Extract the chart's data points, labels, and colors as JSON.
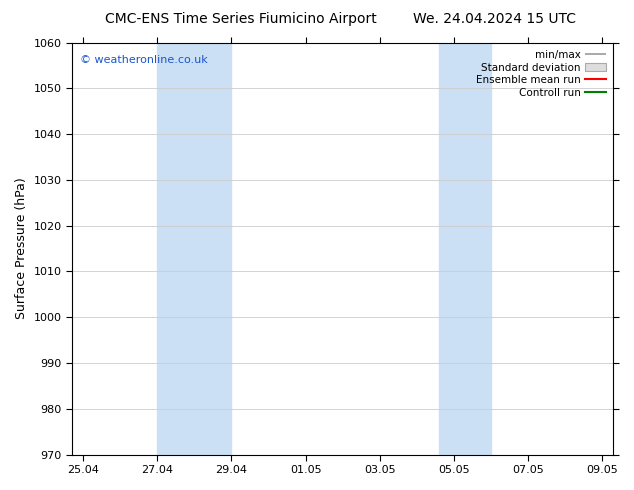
{
  "title_left": "CMC-ENS Time Series Fiumicino Airport",
  "title_right": "We. 24.04.2024 15 UTC",
  "ylabel": "Surface Pressure (hPa)",
  "ylim": [
    970,
    1060
  ],
  "yticks": [
    970,
    980,
    990,
    1000,
    1010,
    1020,
    1030,
    1040,
    1050,
    1060
  ],
  "xtick_labels": [
    "25.04",
    "27.04",
    "29.04",
    "01.05",
    "03.05",
    "05.05",
    "07.05",
    "09.05"
  ],
  "xtick_positions": [
    0,
    2,
    4,
    6,
    8,
    10,
    12,
    14
  ],
  "shaded_bands": [
    {
      "x_start": 2,
      "x_end": 4,
      "color": "#cce0f5"
    },
    {
      "x_start": 9.6,
      "x_end": 11.0,
      "color": "#cce0f5"
    }
  ],
  "watermark": "© weatheronline.co.uk",
  "watermark_color": "#1a56c8",
  "bg_color": "#ffffff",
  "axis_color": "#000000",
  "grid_color": "#cccccc",
  "title_fontsize": 10,
  "label_fontsize": 9,
  "tick_fontsize": 8,
  "legend_fontsize": 7.5
}
